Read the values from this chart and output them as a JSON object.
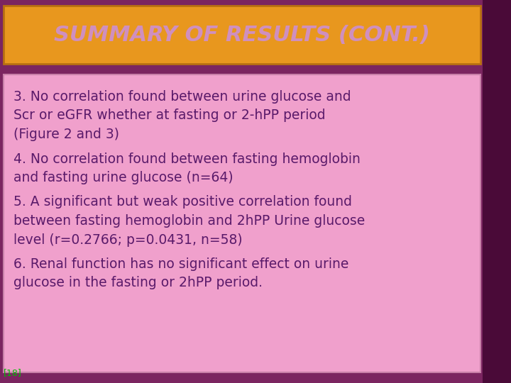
{
  "background_color": "#7B2560",
  "title": "SUMMARY OF RESULTS (CONT.)",
  "title_bg_color": "#E8971E",
  "title_text_color": "#CF8FBF",
  "title_border_color": "#B87010",
  "content_bg_color": "#F0A0CC",
  "content_text_color": "#5A1A6A",
  "content_border_color": "#C880A8",
  "right_strip_color": "#4A0A38",
  "lines": [
    "3. No correlation found between urine glucose and",
    "Scr or eGFR whether at fasting or 2-hPP period",
    "(Figure 2 and 3)",
    "4. No correlation found between fasting hemoglobin",
    "and fasting urine glucose (n=64)",
    "5. A significant but weak positive correlation found",
    "between fasting hemoglobin and 2hPP Urine glucose",
    "level (r=0.2766; p=0.0431, n=58)",
    "6. Renal function has no significant effect on urine",
    "glucose in the fasting or 2hPP period."
  ],
  "footnote": "[18]",
  "footnote_color": "#00BB00",
  "font_size": 13.5,
  "title_font_size": 22
}
